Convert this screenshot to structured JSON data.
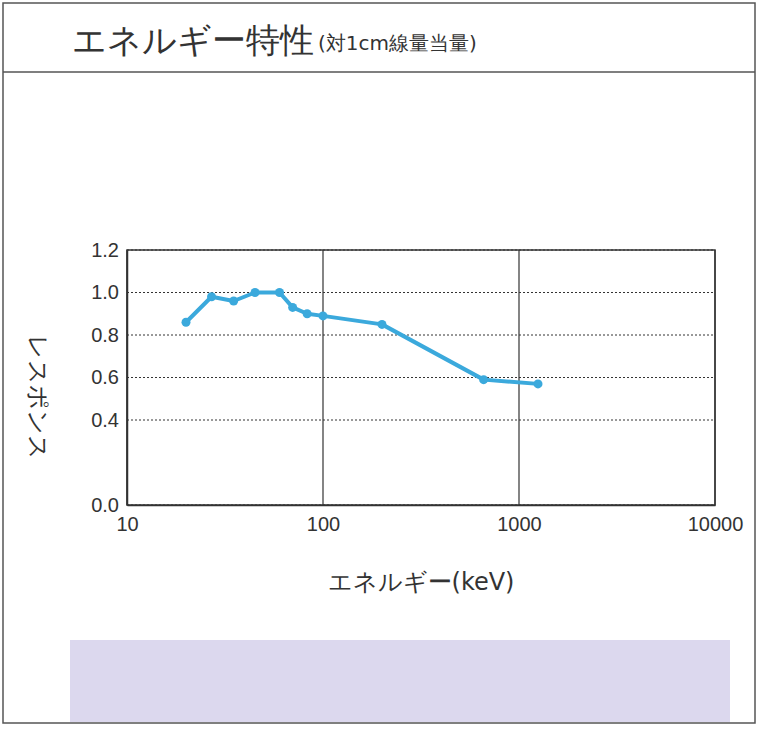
{
  "chart_data": {
    "type": "line",
    "title": "エネルギー特性",
    "subtitle": "(対1cm線量当量)",
    "x_label": "エネルギー(keV)",
    "y_label": "レスポンス",
    "x": [
      20,
      27,
      35,
      45,
      60,
      70,
      83,
      100,
      200,
      660,
      1250
    ],
    "values": [
      0.86,
      0.98,
      0.96,
      1.0,
      1.0,
      0.93,
      0.9,
      0.89,
      0.85,
      0.59,
      0.57
    ],
    "color": "#3ba9dc",
    "marker": "circle",
    "log": "x",
    "grid": true,
    "xlim": [
      10,
      10000
    ],
    "xticks": [
      10,
      100,
      1000,
      10000
    ],
    "ylim": [
      0,
      1.2
    ],
    "yticks": [
      {
        "value": 0,
        "label": "0.0"
      },
      0.4,
      0.6,
      0.8,
      {
        "value": 1,
        "label": "1.0"
      },
      1.2
    ]
  }
}
